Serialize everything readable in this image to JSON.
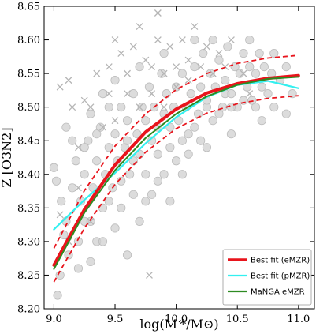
{
  "chart_data": {
    "type": "scatter",
    "xlabel": "log(M */M⊙)",
    "ylabel": "Z [O3N2]",
    "xlim": [
      8.92,
      11.13
    ],
    "ylim": [
      8.2,
      8.65
    ],
    "xticks": [
      9.0,
      9.5,
      10.0,
      10.5,
      11.0
    ],
    "xtick_labels": [
      "9.0",
      "9.5",
      "10.0",
      "10.5",
      "11.0"
    ],
    "yticks": [
      8.2,
      8.25,
      8.3,
      8.35,
      8.4,
      8.45,
      8.5,
      8.55,
      8.6,
      8.65
    ],
    "ytick_labels": [
      "8.20",
      "8.25",
      "8.30",
      "8.35",
      "8.40",
      "8.45",
      "8.50",
      "8.55",
      "8.60",
      "8.65"
    ],
    "grid": false,
    "legend_position": "bottom-right",
    "scatter_circles": [
      [
        9.03,
        8.22
      ],
      [
        9.05,
        8.25
      ],
      [
        9.08,
        8.31
      ],
      [
        9.02,
        8.39
      ],
      [
        9.06,
        8.36
      ],
      [
        9.1,
        8.33
      ],
      [
        9.12,
        8.28
      ],
      [
        9.15,
        8.38
      ],
      [
        9.18,
        8.42
      ],
      [
        9.2,
        8.3
      ],
      [
        9.22,
        8.36
      ],
      [
        9.25,
        8.4
      ],
      [
        9.28,
        8.45
      ],
      [
        9.3,
        8.33
      ],
      [
        9.32,
        8.38
      ],
      [
        9.35,
        8.42
      ],
      [
        9.38,
        8.47
      ],
      [
        9.4,
        8.35
      ],
      [
        9.42,
        8.4
      ],
      [
        9.45,
        8.44
      ],
      [
        9.48,
        8.38
      ],
      [
        9.5,
        8.46
      ],
      [
        9.52,
        8.42
      ],
      [
        9.55,
        8.5
      ],
      [
        9.58,
        8.44
      ],
      [
        9.6,
        8.48
      ],
      [
        9.62,
        8.4
      ],
      [
        9.65,
        8.52
      ],
      [
        9.68,
        8.46
      ],
      [
        9.7,
        8.43
      ],
      [
        9.72,
        8.5
      ],
      [
        9.75,
        8.48
      ],
      [
        9.78,
        8.53
      ],
      [
        9.8,
        8.45
      ],
      [
        9.82,
        8.5
      ],
      [
        9.85,
        8.47
      ],
      [
        9.88,
        8.55
      ],
      [
        9.9,
        8.49
      ],
      [
        9.92,
        8.52
      ],
      [
        9.95,
        8.44
      ],
      [
        9.98,
        8.5
      ],
      [
        10.0,
        8.53
      ],
      [
        10.02,
        8.48
      ],
      [
        10.05,
        8.55
      ],
      [
        10.08,
        8.5
      ],
      [
        10.1,
        8.46
      ],
      [
        10.12,
        8.52
      ],
      [
        10.15,
        8.56
      ],
      [
        10.18,
        8.49
      ],
      [
        10.2,
        8.53
      ],
      [
        10.22,
        8.58
      ],
      [
        10.25,
        8.51
      ],
      [
        10.28,
        8.55
      ],
      [
        10.3,
        8.48
      ],
      [
        10.32,
        8.53
      ],
      [
        10.35,
        8.57
      ],
      [
        10.38,
        8.5
      ],
      [
        10.4,
        8.54
      ],
      [
        10.42,
        8.59
      ],
      [
        10.45,
        8.52
      ],
      [
        10.48,
        8.56
      ],
      [
        10.5,
        8.5
      ],
      [
        10.52,
        8.55
      ],
      [
        10.55,
        8.58
      ],
      [
        10.58,
        8.53
      ],
      [
        10.6,
        8.56
      ],
      [
        10.62,
        8.51
      ],
      [
        10.65,
        8.55
      ],
      [
        10.68,
        8.58
      ],
      [
        10.7,
        8.53
      ],
      [
        10.72,
        8.56
      ],
      [
        10.75,
        8.52
      ],
      [
        10.78,
        8.55
      ],
      [
        10.8,
        8.5
      ],
      [
        10.85,
        8.54
      ],
      [
        10.9,
        8.56
      ],
      [
        10.95,
        8.52
      ],
      [
        9.15,
        8.45
      ],
      [
        9.25,
        8.33
      ],
      [
        9.35,
        8.3
      ],
      [
        9.45,
        8.36
      ],
      [
        9.55,
        8.39
      ],
      [
        9.65,
        8.42
      ],
      [
        9.75,
        8.4
      ],
      [
        9.85,
        8.43
      ],
      [
        9.95,
        8.47
      ],
      [
        10.05,
        8.45
      ],
      [
        10.15,
        8.47
      ],
      [
        10.25,
        8.5
      ],
      [
        10.35,
        8.49
      ],
      [
        10.45,
        8.5
      ],
      [
        10.55,
        8.51
      ],
      [
        10.65,
        8.5
      ],
      [
        9.6,
        8.28
      ],
      [
        9.7,
        8.33
      ],
      [
        9.8,
        8.37
      ],
      [
        9.9,
        8.4
      ],
      [
        10.0,
        8.42
      ],
      [
        10.1,
        8.43
      ],
      [
        10.2,
        8.45
      ],
      [
        9.2,
        8.26
      ],
      [
        9.3,
        8.27
      ],
      [
        9.4,
        8.3
      ],
      [
        9.5,
        8.32
      ],
      [
        10.3,
        8.6
      ],
      [
        10.4,
        8.52
      ],
      [
        10.6,
        8.6
      ],
      [
        10.15,
        8.6
      ],
      [
        9.9,
        8.58
      ],
      [
        9.7,
        8.56
      ],
      [
        9.5,
        8.54
      ],
      [
        9.4,
        8.52
      ],
      [
        9.3,
        8.49
      ],
      [
        9.1,
        8.47
      ],
      [
        9.0,
        8.41
      ],
      [
        10.7,
        8.48
      ],
      [
        10.9,
        8.49
      ],
      [
        10.8,
        8.58
      ],
      [
        9.55,
        8.35
      ],
      [
        9.65,
        8.37
      ],
      [
        9.75,
        8.36
      ],
      [
        9.85,
        8.39
      ],
      [
        9.95,
        8.36
      ],
      [
        10.05,
        8.4
      ],
      [
        10.25,
        8.44
      ],
      [
        10.45,
        8.46
      ],
      [
        9.45,
        8.5
      ],
      [
        9.35,
        8.46
      ],
      [
        9.25,
        8.44
      ],
      [
        9.6,
        8.45
      ]
    ],
    "scatter_crosses": [
      [
        9.05,
        8.53
      ],
      [
        9.12,
        8.54
      ],
      [
        9.3,
        8.5
      ],
      [
        9.45,
        8.52
      ],
      [
        9.55,
        8.58
      ],
      [
        9.6,
        8.55
      ],
      [
        9.65,
        8.59
      ],
      [
        9.7,
        8.62
      ],
      [
        9.75,
        8.57
      ],
      [
        9.8,
        8.56
      ],
      [
        9.85,
        8.6
      ],
      [
        9.9,
        8.55
      ],
      [
        9.95,
        8.59
      ],
      [
        10.0,
        8.56
      ],
      [
        10.05,
        8.6
      ],
      [
        10.1,
        8.57
      ],
      [
        10.15,
        8.62
      ],
      [
        10.2,
        8.56
      ],
      [
        10.25,
        8.59
      ],
      [
        10.3,
        8.55
      ],
      [
        10.35,
        8.58
      ],
      [
        10.4,
        8.56
      ],
      [
        10.45,
        8.6
      ],
      [
        9.5,
        8.48
      ],
      [
        9.4,
        8.47
      ],
      [
        9.2,
        8.44
      ],
      [
        9.15,
        8.5
      ],
      [
        9.35,
        8.55
      ],
      [
        9.25,
        8.51
      ],
      [
        9.6,
        8.52
      ],
      [
        9.7,
        8.5
      ],
      [
        9.8,
        8.52
      ],
      [
        9.9,
        8.5
      ],
      [
        10.0,
        8.53
      ],
      [
        10.1,
        8.54
      ],
      [
        9.12,
        8.3
      ],
      [
        9.2,
        8.38
      ],
      [
        9.3,
        8.33
      ],
      [
        9.05,
        8.34
      ],
      [
        9.78,
        8.25
      ],
      [
        10.55,
        8.55
      ],
      [
        10.6,
        8.52
      ],
      [
        9.5,
        8.6
      ],
      [
        9.85,
        8.64
      ],
      [
        9.45,
        8.56
      ]
    ],
    "series": [
      {
        "name": "Best fit (eMZR)",
        "color": "#e8141c",
        "x": [
          9.0,
          9.25,
          9.5,
          9.75,
          10.0,
          10.25,
          10.5,
          10.75,
          11.0
        ],
        "y": [
          8.265,
          8.348,
          8.414,
          8.463,
          8.497,
          8.521,
          8.535,
          8.543,
          8.547
        ]
      },
      {
        "name": "Best fit (pMZR)",
        "color": "#33f0f0",
        "x": [
          9.0,
          9.25,
          9.5,
          9.75,
          10.0,
          10.25,
          10.5,
          10.75,
          11.0
        ],
        "y": [
          8.318,
          8.362,
          8.402,
          8.446,
          8.485,
          8.515,
          8.533,
          8.539,
          8.528
        ]
      },
      {
        "name": "MaNGA eMZR",
        "color": "#2e8b22",
        "x": [
          9.0,
          9.25,
          9.5,
          9.75,
          10.0,
          10.25,
          10.5,
          10.75,
          11.0
        ],
        "y": [
          8.259,
          8.343,
          8.406,
          8.454,
          8.49,
          8.516,
          8.533,
          8.542,
          8.545
        ]
      }
    ],
    "bounds": {
      "color": "#e8141c",
      "upper": {
        "x": [
          9.0,
          9.25,
          9.5,
          9.75,
          10.0,
          10.25,
          10.5,
          10.75,
          11.0
        ],
        "y": [
          8.29,
          8.376,
          8.442,
          8.49,
          8.526,
          8.55,
          8.565,
          8.573,
          8.577
        ]
      },
      "lower": {
        "x": [
          9.0,
          9.25,
          9.5,
          9.75,
          10.0,
          10.25,
          10.5,
          10.75,
          11.0
        ],
        "y": [
          8.24,
          8.32,
          8.385,
          8.433,
          8.468,
          8.491,
          8.505,
          8.513,
          8.517
        ]
      }
    }
  }
}
